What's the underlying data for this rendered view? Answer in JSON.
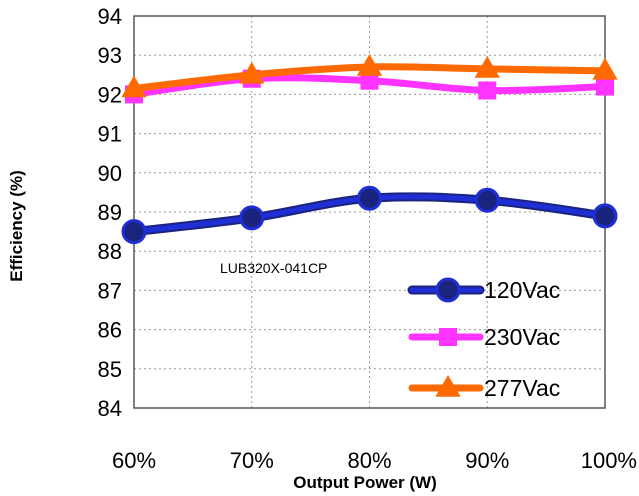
{
  "chart_data": {
    "type": "line",
    "title": "",
    "xlabel": "Output Power (W)",
    "ylabel": "Efficiency (%)",
    "categories": [
      "60%",
      "70%",
      "80%",
      "90%",
      "100%"
    ],
    "ylim": [
      84,
      94
    ],
    "yticks": [
      "84",
      "85",
      "86",
      "87",
      "88",
      "89",
      "90",
      "91",
      "92",
      "93",
      "94"
    ],
    "grid": "dotted",
    "legend_position": "bottom-right",
    "annotation": "LUB320X-041CP",
    "series": [
      {
        "name": "120Vac",
        "values": [
          88.5,
          88.85,
          89.35,
          89.3,
          88.9
        ],
        "color": "#1f2fd6",
        "marker": "circle"
      },
      {
        "name": "230Vac",
        "values": [
          92.0,
          92.4,
          92.35,
          92.1,
          92.2
        ],
        "color": "#ff33ff",
        "marker": "square"
      },
      {
        "name": "277Vac",
        "values": [
          92.15,
          92.5,
          92.7,
          92.65,
          92.6
        ],
        "color": "#ff6a00",
        "marker": "triangle"
      }
    ]
  }
}
